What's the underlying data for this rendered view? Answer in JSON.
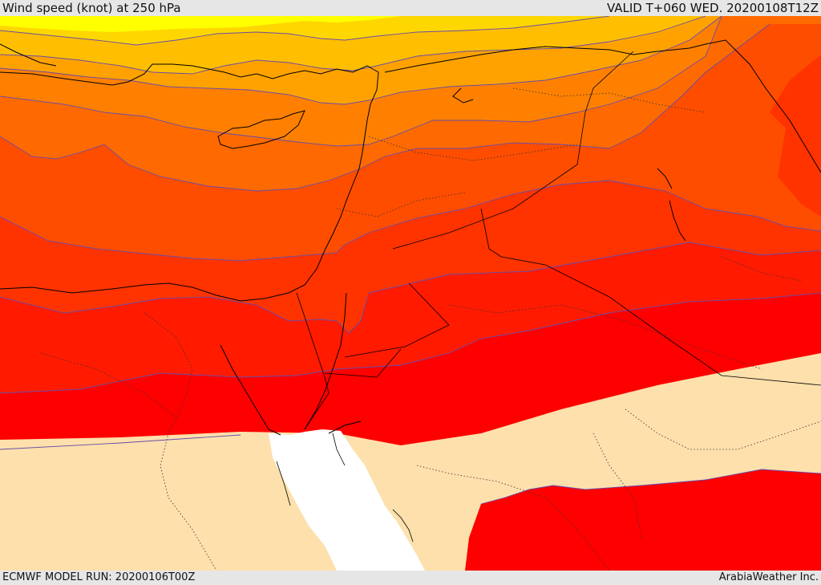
{
  "header": {
    "title": "Wind speed (knot) at 250 hPa",
    "valid": "VALID T+060 WED. 20200108T12Z"
  },
  "footer": {
    "run": "ECMWF MODEL RUN: 20200106T00Z",
    "credit": "ArabiaWeather Inc."
  },
  "colors": {
    "band_1": "#ffff00",
    "band_2": "#ffd700",
    "band_3": "#ffbf00",
    "band_4": "#ffa200",
    "band_5": "#ff8000",
    "band_6": "#ff6a00",
    "band_7": "#ff4d00",
    "band_8": "#ff3300",
    "band_9": "#ff1a00",
    "band_10": "#ff0000",
    "land": "#fde0ac",
    "sea": "#ffffff",
    "contour": "#6a4ca8",
    "coast": "#000000"
  }
}
